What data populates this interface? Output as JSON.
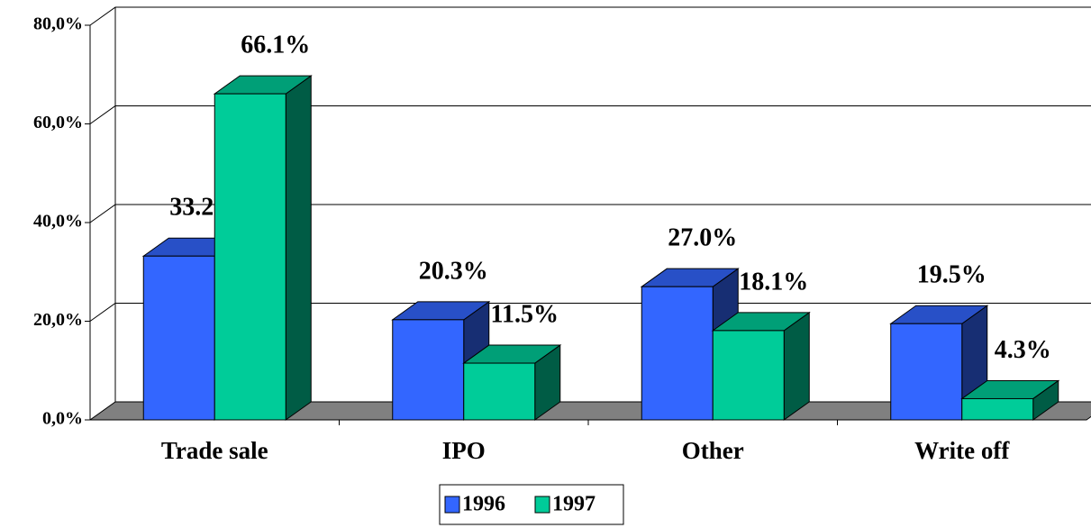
{
  "chart_data": {
    "type": "bar3d",
    "categories": [
      "Trade sale",
      "IPO",
      "Other",
      "Write off"
    ],
    "series": [
      {
        "name": "1996",
        "color": "#3366ff",
        "values": [
          33.2,
          20.3,
          27.0,
          19.5
        ],
        "value_labels": [
          "33.2%",
          "20.3%",
          "27.0%",
          "19.5%"
        ]
      },
      {
        "name": "1997",
        "color": "#00cc99",
        "values": [
          66.1,
          11.5,
          18.1,
          4.3
        ],
        "value_labels": [
          "66.1%",
          "11.5%",
          "18.1%",
          "4.3%"
        ]
      }
    ],
    "ylim": [
      0,
      80
    ],
    "yticks": [
      {
        "value": 0,
        "label": "0,0%"
      },
      {
        "value": 20,
        "label": "20,0%"
      },
      {
        "value": 40,
        "label": "40,0%"
      },
      {
        "value": 60,
        "label": "60,0%"
      },
      {
        "value": 80,
        "label": "80,0%"
      }
    ],
    "grid": true,
    "legend": "bottom"
  }
}
